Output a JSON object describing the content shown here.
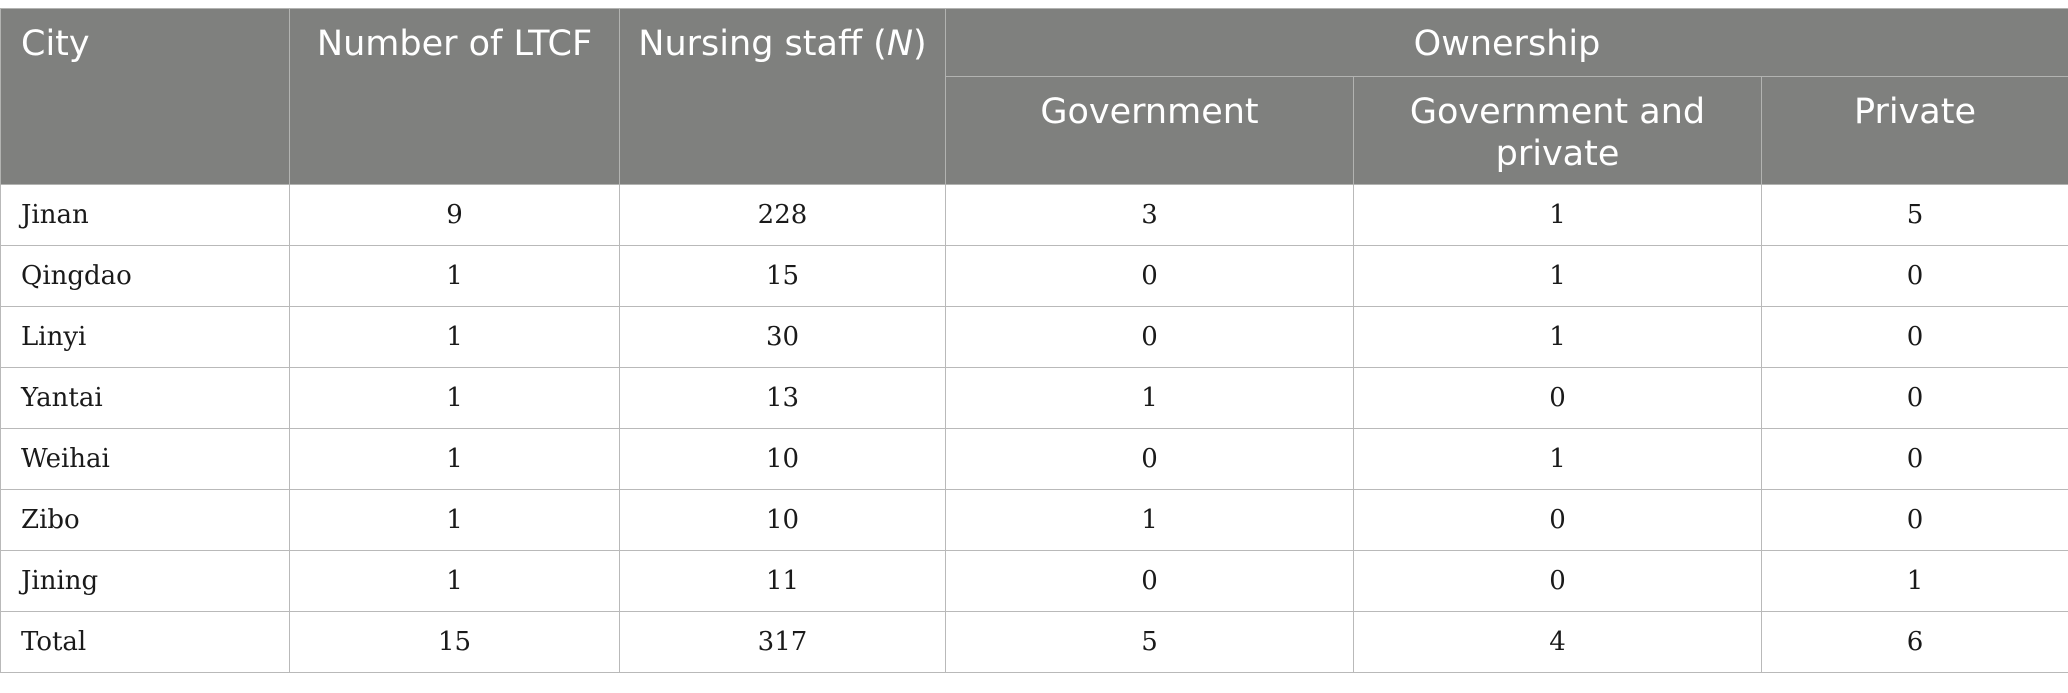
{
  "headers": {
    "city": "City",
    "number_of_ltcf": "Number of LTCF",
    "nursing_staff_prefix": "Nursing staff (",
    "nursing_staff_var": "N",
    "nursing_staff_suffix": ")",
    "ownership": "Ownership",
    "government": "Government",
    "government_and_private": "Government and private",
    "private": "Private"
  },
  "rows": [
    {
      "city": "Jinan",
      "ltcf": "9",
      "staff": "228",
      "gov": "3",
      "govpriv": "1",
      "priv": "5"
    },
    {
      "city": "Qingdao",
      "ltcf": "1",
      "staff": "15",
      "gov": "0",
      "govpriv": "1",
      "priv": "0"
    },
    {
      "city": "Linyi",
      "ltcf": "1",
      "staff": "30",
      "gov": "0",
      "govpriv": "1",
      "priv": "0"
    },
    {
      "city": "Yantai",
      "ltcf": "1",
      "staff": "13",
      "gov": "1",
      "govpriv": "0",
      "priv": "0"
    },
    {
      "city": "Weihai",
      "ltcf": "1",
      "staff": "10",
      "gov": "0",
      "govpriv": "1",
      "priv": "0"
    },
    {
      "city": "Zibo",
      "ltcf": "1",
      "staff": "10",
      "gov": "1",
      "govpriv": "0",
      "priv": "0"
    },
    {
      "city": "Jining",
      "ltcf": "1",
      "staff": "11",
      "gov": "0",
      "govpriv": "0",
      "priv": "1"
    },
    {
      "city": "Total",
      "ltcf": "15",
      "staff": "317",
      "gov": "5",
      "govpriv": "4",
      "priv": "6"
    }
  ],
  "colors": {
    "header_bg": "#7f807e",
    "header_text": "#ffffff",
    "grid_line": "#b9b9b9"
  }
}
